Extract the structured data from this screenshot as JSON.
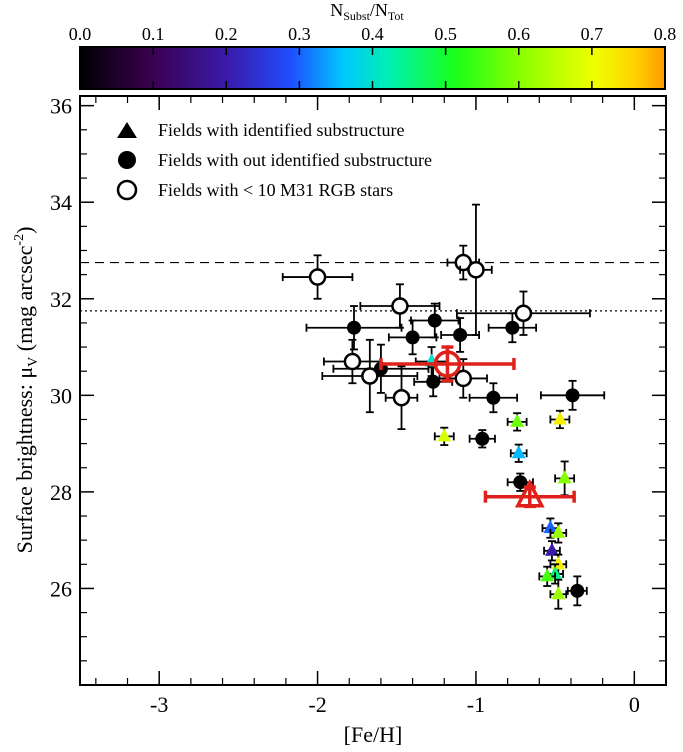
{
  "chart_data": {
    "type": "scatter",
    "xlabel": "[Fe/H]",
    "ylabel_main": "Surface brightness: μ",
    "ylabel_sub": "V",
    "ylabel_units_pre": " (mag arcsec",
    "ylabel_units_sup": "-2",
    "ylabel_units_post": ")",
    "xlim": [
      -3.5,
      0.2
    ],
    "ylim": [
      24.0,
      36.2
    ],
    "xticks": [
      -3,
      -2,
      -1,
      0
    ],
    "xtick_labels": [
      "-3",
      "-2",
      "-1",
      "0"
    ],
    "yticks": [
      26,
      28,
      30,
      32,
      34,
      36
    ],
    "ytick_labels": [
      "26",
      "28",
      "30",
      "32",
      "34",
      "36"
    ],
    "hlines": [
      {
        "y": 32.75,
        "style": "dashed"
      },
      {
        "y": 31.75,
        "style": "dotted"
      }
    ],
    "colorbar": {
      "label_main": "N",
      "label_sub1": "Subst",
      "label_sep": "/N",
      "label_sub2": "Tot",
      "min": 0.0,
      "max": 0.8,
      "ticks": [
        0.0,
        0.1,
        0.2,
        0.3,
        0.4,
        0.5,
        0.6,
        0.7,
        0.8
      ],
      "tick_labels": [
        "0.0",
        "0.1",
        "0.2",
        "0.3",
        "0.4",
        "0.5",
        "0.6",
        "0.7",
        "0.8"
      ]
    },
    "legend": {
      "position": "top-left",
      "entries": [
        {
          "marker": "triangle",
          "label": "Fields with identified substructure"
        },
        {
          "marker": "circle",
          "label": "Fields with out identified substructure"
        },
        {
          "marker": "open-circle",
          "label": "Fields with < 10 M31 RGB stars"
        }
      ]
    },
    "series": [
      {
        "name": "Fields with identified substructure",
        "marker": "triangle",
        "points": [
          {
            "x": -0.74,
            "y": 29.45,
            "xerr": 0.06,
            "yerr": 0.18,
            "c": 0.58
          },
          {
            "x": -0.47,
            "y": 29.5,
            "xerr": 0.06,
            "yerr": 0.18,
            "c": 0.72
          },
          {
            "x": -1.2,
            "y": 29.15,
            "xerr": 0.06,
            "yerr": 0.18,
            "c": 0.68
          },
          {
            "x": -0.73,
            "y": 28.8,
            "xerr": 0.05,
            "yerr": 0.18,
            "c": 0.35
          },
          {
            "x": -0.44,
            "y": 28.28,
            "xerr": 0.06,
            "yerr": 0.35,
            "c": 0.6
          },
          {
            "x": -0.53,
            "y": 27.25,
            "xerr": 0.05,
            "yerr": 0.2,
            "c": 0.3
          },
          {
            "x": -0.48,
            "y": 27.15,
            "xerr": 0.05,
            "yerr": 0.2,
            "c": 0.62
          },
          {
            "x": -0.52,
            "y": 26.78,
            "xerr": 0.05,
            "yerr": 0.2,
            "c": 0.2
          },
          {
            "x": -0.48,
            "y": 26.5,
            "xerr": 0.05,
            "yerr": 0.2,
            "c": 0.72
          },
          {
            "x": -0.5,
            "y": 26.3,
            "xerr": 0.05,
            "yerr": 0.2,
            "c": 0.45
          },
          {
            "x": -0.55,
            "y": 26.25,
            "xerr": 0.05,
            "yerr": 0.2,
            "c": 0.55
          },
          {
            "x": -0.48,
            "y": 25.88,
            "xerr": 0.05,
            "yerr": 0.3,
            "c": 0.62
          },
          {
            "x": -1.28,
            "y": 30.7,
            "xerr": 0.1,
            "yerr": 0.3,
            "c": 0.4
          }
        ]
      },
      {
        "name": "Fields with out identified substructure",
        "marker": "circle",
        "points": [
          {
            "x": -1.77,
            "y": 31.4,
            "xerr": 0.3,
            "yerr": 0.45,
            "c": 0.0
          },
          {
            "x": -1.1,
            "y": 31.25,
            "xerr": 0.12,
            "yerr": 0.35,
            "c": 0.0
          },
          {
            "x": -1.26,
            "y": 31.55,
            "xerr": 0.15,
            "yerr": 0.35,
            "c": 0.0
          },
          {
            "x": -1.4,
            "y": 31.2,
            "xerr": 0.15,
            "yerr": 0.35,
            "c": 0.0
          },
          {
            "x": -0.77,
            "y": 31.4,
            "xerr": 0.15,
            "yerr": 0.3,
            "c": 0.0
          },
          {
            "x": -1.6,
            "y": 30.55,
            "xerr": 0.3,
            "yerr": 0.5,
            "c": 0.0
          },
          {
            "x": -1.27,
            "y": 30.28,
            "xerr": 0.12,
            "yerr": 0.3,
            "c": 0.0
          },
          {
            "x": -0.89,
            "y": 29.95,
            "xerr": 0.15,
            "yerr": 0.3,
            "c": 0.0
          },
          {
            "x": -0.39,
            "y": 30.0,
            "xerr": 0.2,
            "yerr": 0.3,
            "c": 0.0
          },
          {
            "x": -0.96,
            "y": 29.1,
            "xerr": 0.08,
            "yerr": 0.18,
            "c": 0.0
          },
          {
            "x": -0.72,
            "y": 28.2,
            "xerr": 0.08,
            "yerr": 0.18,
            "c": 0.0
          },
          {
            "x": -0.36,
            "y": 25.95,
            "xerr": 0.06,
            "yerr": 0.3,
            "c": 0.0
          }
        ]
      },
      {
        "name": "Fields with < 10 M31 RGB stars",
        "marker": "open-circle",
        "points": [
          {
            "x": -2.0,
            "y": 32.45,
            "xerr": 0.22,
            "yerr": 0.45,
            "c": 0.0
          },
          {
            "x": -1.08,
            "y": 32.75,
            "xerr": 0.1,
            "yerr": 0.35,
            "c": 0.0
          },
          {
            "x": -1.0,
            "y": 32.6,
            "xerr": 0.1,
            "yerr": 1.35,
            "c": 0.0
          },
          {
            "x": -1.48,
            "y": 31.85,
            "xerr": 0.25,
            "yerr": 0.45,
            "c": 0.0
          },
          {
            "x": -0.7,
            "y": 31.7,
            "xerr": 0.42,
            "yerr": 0.45,
            "c": 0.0
          },
          {
            "x": -1.78,
            "y": 30.7,
            "xerr": 0.18,
            "yerr": 0.45,
            "c": 0.0
          },
          {
            "x": -1.67,
            "y": 30.4,
            "xerr": 0.3,
            "yerr": 0.75,
            "c": 0.0
          },
          {
            "x": -1.08,
            "y": 30.35,
            "xerr": 0.15,
            "yerr": 0.4,
            "c": 0.0
          },
          {
            "x": -1.47,
            "y": 29.95,
            "xerr": 0.1,
            "yerr": 0.65,
            "c": 0.0
          }
        ]
      },
      {
        "name": "Mean (circle)",
        "marker": "big-circle",
        "color": "#e0201a",
        "points": [
          {
            "x": -1.18,
            "y": 30.65,
            "xerr": 0.42,
            "yerr": 0.35
          }
        ]
      },
      {
        "name": "Mean (triangle)",
        "marker": "big-triangle",
        "color": "#e0201a",
        "points": [
          {
            "x": -0.66,
            "y": 27.9,
            "xerr": 0.28,
            "yerr": 0.2
          }
        ]
      }
    ]
  }
}
